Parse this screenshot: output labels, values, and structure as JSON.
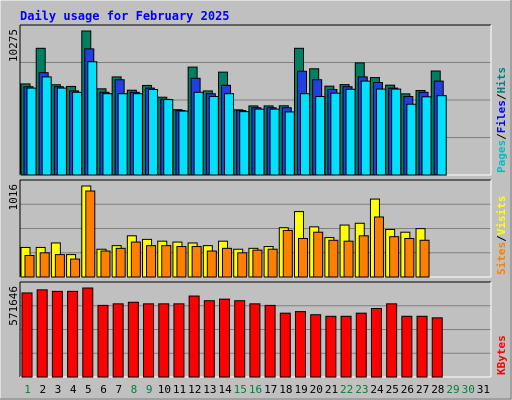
{
  "chart_data": {
    "title": "Daily usage for February 2025",
    "type": "bar",
    "days": [
      "1",
      "2",
      "3",
      "4",
      "5",
      "6",
      "7",
      "8",
      "9",
      "10",
      "11",
      "12",
      "13",
      "14",
      "15",
      "16",
      "17",
      "18",
      "19",
      "20",
      "21",
      "22",
      "23",
      "24",
      "25",
      "26",
      "27",
      "28",
      "29",
      "30",
      "31"
    ],
    "day_colors": [
      "#008040",
      "#000000",
      "#000000",
      "#000000",
      "#000000",
      "#000000",
      "#000000",
      "#008040",
      "#008040",
      "#000000",
      "#000000",
      "#000000",
      "#000000",
      "#000000",
      "#008040",
      "#008040",
      "#000000",
      "#000000",
      "#000000",
      "#000000",
      "#000000",
      "#008040",
      "#008040",
      "#000000",
      "#000000",
      "#000000",
      "#000000",
      "#000000",
      "#008040",
      "#008040",
      "#000000"
    ],
    "panels": [
      {
        "name": "hits-files-pages",
        "ymax_label": "10275",
        "ymax": 10275,
        "legend": [
          {
            "text": "Pages",
            "color": "#00c0c0"
          },
          {
            "text": "/",
            "color": "#000000"
          },
          {
            "text": "Files",
            "color": "#0000ff"
          },
          {
            "text": "/",
            "color": "#000000"
          },
          {
            "text": "Hits",
            "color": "#008080"
          }
        ],
        "series": [
          {
            "name": "Hits",
            "color": "#008060",
            "values": [
              6500,
              9040,
              6440,
              6320,
              10275,
              6150,
              7000,
              6050,
              6390,
              5550,
              4660,
              7700,
              6000,
              7340,
              4650,
              4930,
              4930,
              4940,
              9040,
              7580,
              6340,
              6450,
              8000,
              6950,
              6410,
              5790,
              6030,
              7420,
              0,
              0,
              0
            ]
          },
          {
            "name": "Files",
            "color": "#2040e0",
            "values": [
              6300,
              7300,
              6300,
              6000,
              9000,
              5900,
              6800,
              5900,
              6200,
              5400,
              4600,
              6900,
              5800,
              6400,
              4600,
              4800,
              4800,
              4800,
              7400,
              6800,
              6100,
              6300,
              7000,
              6600,
              6200,
              5600,
              5900,
              6700,
              0,
              0,
              0
            ]
          },
          {
            "name": "Pages",
            "color": "#00e0ff",
            "values": [
              6200,
              7000,
              6200,
              5900,
              8080,
              5800,
              5800,
              5800,
              6100,
              5380,
              4560,
              5900,
              5600,
              5800,
              4520,
              4700,
              4700,
              4500,
              5800,
              5600,
              5840,
              6120,
              6700,
              6130,
              6130,
              5050,
              5580,
              5660,
              0,
              0,
              0
            ]
          }
        ]
      },
      {
        "name": "visits-sites",
        "ymax_label": "1016",
        "ymax": 1016,
        "legend": [
          {
            "text": "Sites",
            "color": "#ff8000"
          },
          {
            "text": "/",
            "color": "#000000"
          },
          {
            "text": "Visits",
            "color": "#ffff00"
          }
        ],
        "series": [
          {
            "name": "Visits",
            "color": "#ffff00",
            "values": [
              330,
              330,
              380,
              250,
              1016,
              310,
              350,
              460,
              420,
              400,
              390,
              380,
              350,
              400,
              310,
              320,
              340,
              550,
              730,
              560,
              440,
              580,
              600,
              870,
              530,
              500,
              540,
              0,
              0,
              0,
              0
            ]
          },
          {
            "name": "Sites",
            "color": "#ff8000",
            "values": [
              240,
              270,
              250,
              200,
              960,
              290,
              320,
              390,
              350,
              350,
              340,
              340,
              290,
              320,
              270,
              300,
              310,
              520,
              430,
              500,
              410,
              400,
              460,
              670,
              450,
              430,
              410,
              0,
              0,
              0,
              0
            ]
          }
        ]
      },
      {
        "name": "kbytes",
        "ymax_label": "571646",
        "ymax": 571646,
        "legend": [
          {
            "text": "KBytes",
            "color": "#ff0000"
          }
        ],
        "series": [
          {
            "name": "KBytes",
            "color": "#ff0000",
            "values": [
              540000,
              560000,
              550000,
              550000,
              571646,
              460000,
              470000,
              480000,
              470000,
              470000,
              470000,
              520000,
              490000,
              500000,
              490000,
              470000,
              460000,
              410000,
              420000,
              400000,
              390000,
              390000,
              410000,
              440000,
              470000,
              390000,
              390000,
              380000,
              0,
              0,
              0
            ]
          }
        ]
      }
    ]
  }
}
